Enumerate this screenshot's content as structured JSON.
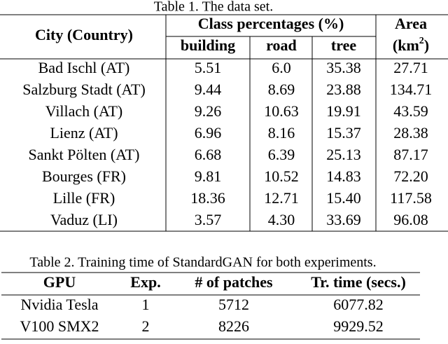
{
  "table1": {
    "caption": "Table 1. The data set.",
    "header": {
      "city": "City (Country)",
      "class_percentages": "Class percentages (%)",
      "area": "Area",
      "area_unit": {
        "open": "(km",
        "sup": "2",
        "close": ")"
      },
      "columns": [
        "building",
        "road",
        "tree"
      ]
    },
    "rows": [
      [
        "Bad Ischl (AT)",
        "5.51",
        "6.0",
        "35.38",
        "27.71"
      ],
      [
        "Salzburg Stadt (AT)",
        "9.44",
        "8.69",
        "23.88",
        "134.71"
      ],
      [
        "Villach (AT)",
        "9.26",
        "10.63",
        "19.91",
        "43.59"
      ],
      [
        "Lienz (AT)",
        "6.96",
        "8.16",
        "15.37",
        "28.38"
      ],
      [
        "Sankt Pölten (AT)",
        "6.68",
        "6.39",
        "25.13",
        "87.17"
      ],
      [
        "Bourges (FR)",
        "9.81",
        "10.52",
        "14.83",
        "72.20"
      ],
      [
        "Lille (FR)",
        "18.36",
        "12.71",
        "15.40",
        "117.58"
      ],
      [
        "Vaduz (LI)",
        "3.57",
        "4.30",
        "33.69",
        "96.08"
      ]
    ]
  },
  "table2": {
    "caption": "Table 2. Training time of StandardGAN for both experiments.",
    "header": [
      "GPU",
      "Exp.",
      "# of patches",
      "Tr. time (secs.)"
    ],
    "rows": [
      [
        "Nvidia Tesla",
        "1",
        "5712",
        "6077.82"
      ],
      [
        "V100 SMX2",
        "2",
        "8226",
        "9929.52"
      ]
    ]
  }
}
